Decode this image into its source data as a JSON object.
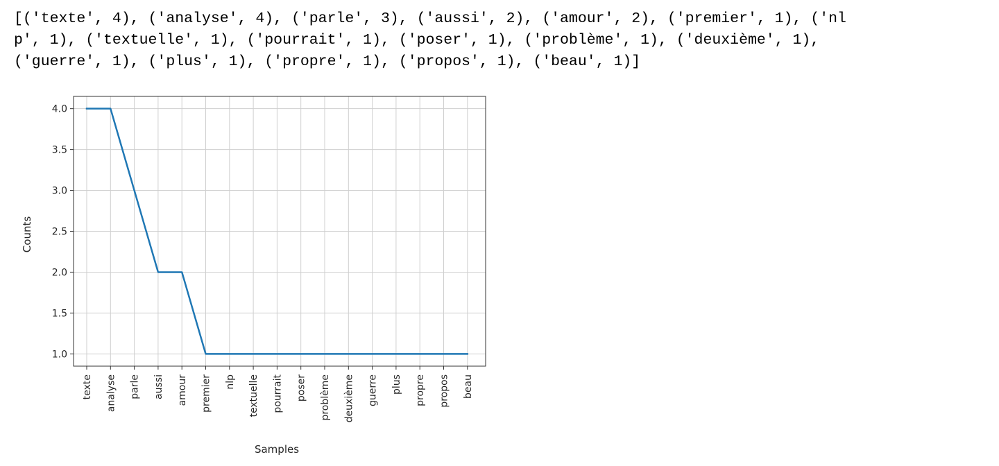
{
  "output": {
    "lines": [
      "[('texte', 4), ('analyse', 4), ('parle', 3), ('aussi', 2), ('amour', 2), ('premier', 1), ('nl",
      "p', 1), ('textuelle', 1), ('pourrait', 1), ('poser', 1), ('problème', 1), ('deuxième', 1),",
      "('guerre', 1), ('plus', 1), ('propre', 1), ('propos', 1), ('beau', 1)]"
    ]
  },
  "chart_data": {
    "type": "line",
    "categories": [
      "texte",
      "analyse",
      "parle",
      "aussi",
      "amour",
      "premier",
      "nlp",
      "textuelle",
      "pourrait",
      "poser",
      "problème",
      "deuxième",
      "guerre",
      "plus",
      "propre",
      "propos",
      "beau"
    ],
    "values": [
      4,
      4,
      3,
      2,
      2,
      1,
      1,
      1,
      1,
      1,
      1,
      1,
      1,
      1,
      1,
      1,
      1
    ],
    "yticks": [
      "1.0",
      "1.5",
      "2.0",
      "2.5",
      "3.0",
      "3.5",
      "4.0"
    ],
    "ylim": [
      0.85,
      4.15
    ],
    "xlabel": "Samples",
    "ylabel": "Counts",
    "grid": true,
    "line_color": "#1f77b4"
  }
}
